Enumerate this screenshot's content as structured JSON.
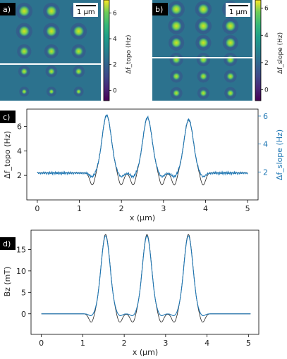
{
  "chart_data": [
    {
      "panel": "a)",
      "type": "heatmap",
      "scale_bar": "1 μm",
      "colorbar": {
        "label": "Δf_topo (Hz)",
        "ticks": [
          0,
          2,
          4,
          6
        ],
        "range": [
          -0.8,
          7
        ]
      },
      "grid": {
        "rows": 5,
        "cols": 3
      },
      "dot_intensity_by_row": [
        6.8,
        6.6,
        4.8,
        2.8,
        1.2
      ],
      "background_value": 2.2,
      "cut_line_row_fraction": 0.58
    },
    {
      "panel": "b)",
      "type": "heatmap",
      "scale_bar": "1 μm",
      "colorbar": {
        "label": "Δf_slope (Hz)",
        "ticks": [
          0,
          2,
          4,
          6
        ],
        "range": [
          -0.8,
          6.6
        ]
      },
      "grid": {
        "rows": 6,
        "cols": 3
      },
      "dot_intensity_by_row": [
        6.4,
        6.2,
        5.6,
        4.0,
        3.2,
        2.8
      ],
      "background_value": 2.2,
      "cut_line_row_fraction": 0.5
    },
    {
      "panel": "c)",
      "type": "line",
      "xlabel": "x (μm)",
      "ylabel_left": "Δf_topo (Hz)",
      "ylabel_right": "Δf_slope (Hz)",
      "xlim": [
        -0.25,
        5.25
      ],
      "ylim_left": [
        0,
        7.4
      ],
      "ylim_right": [
        0,
        6.5
      ],
      "xticks": [
        0,
        1,
        2,
        3,
        4,
        5
      ],
      "yticks_left": [
        2,
        4,
        6
      ],
      "yticks_right": [
        2,
        4,
        6
      ],
      "peaks_x": [
        1.65,
        2.62,
        3.6
      ],
      "series": [
        {
          "axis": "left",
          "color": "#222222",
          "baseline": 2.2,
          "peaks": [
            6.9,
            6.7,
            6.5
          ],
          "dip_min": 0.35
        },
        {
          "axis": "right",
          "color": "#1f77b4",
          "baseline": 1.92,
          "peaks": [
            6.05,
            5.9,
            5.75
          ],
          "dip_min": 1.35
        }
      ]
    },
    {
      "panel": "d)",
      "type": "line",
      "xlabel": "x (μm)",
      "ylabel": "Bz (mT)",
      "xlim": [
        -0.25,
        5.25
      ],
      "ylim": [
        -4.8,
        19.5
      ],
      "xticks": [
        0,
        1,
        2,
        3,
        4,
        5
      ],
      "yticks": [
        0,
        5,
        10,
        15
      ],
      "peaks_x": [
        1.55,
        2.55,
        3.55
      ],
      "series": [
        {
          "color": "#222222",
          "peak": 18.5,
          "dip_min": -3.8
        },
        {
          "color": "#1f77b4",
          "peak": 18.2,
          "dip_min": -1.0
        }
      ]
    }
  ]
}
